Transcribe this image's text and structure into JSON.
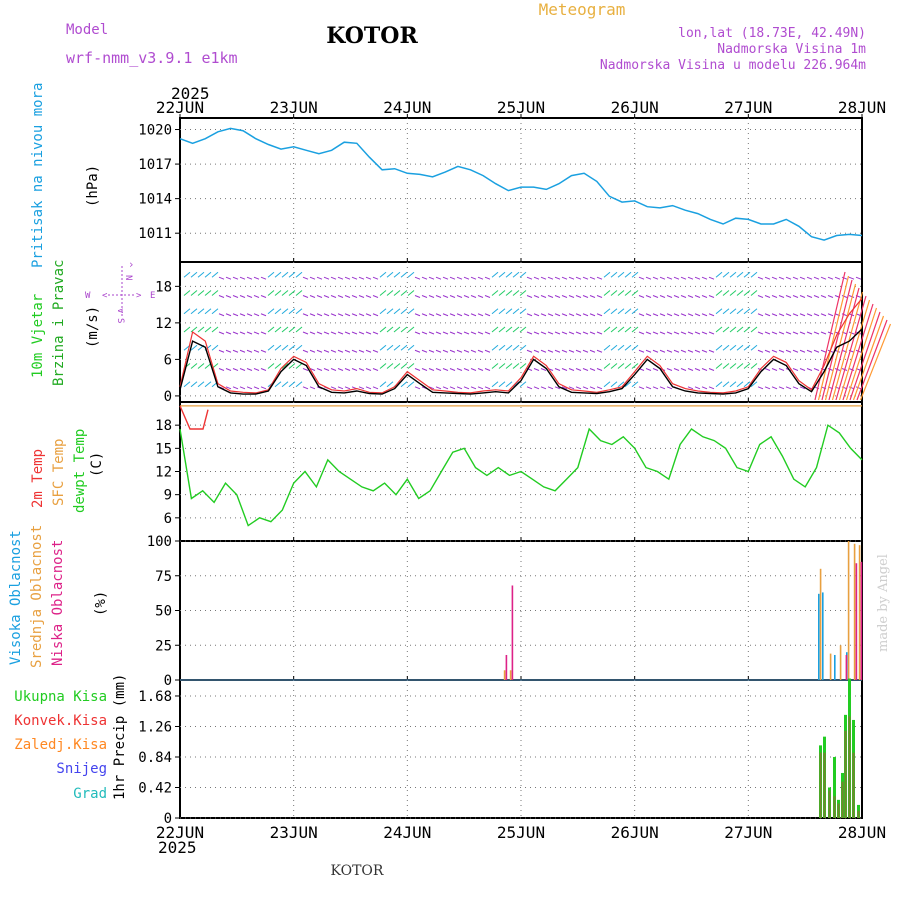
{
  "header": {
    "model_label": "Model",
    "model_name": "wrf-nmm_v3.9.1 e1km",
    "station": "KOTOR",
    "product": "Meteogram",
    "lonlat": "lon,lat (18.73E, 42.49N)",
    "altitude": "Nadmorska Visina 1m",
    "model_altitude": "Nadmorska Visina u modelu 226.964m",
    "year_top": "2025",
    "year_bottom": "2025",
    "footer_station": "KOTOR",
    "signature": "made by Angel"
  },
  "colors": {
    "pressure": "#1aa0e0",
    "wind_label": "#22cc22",
    "wind_speed_label": "#22aa22",
    "direction_label": "#aa44cc",
    "temp2m": "#ee3333",
    "sfc_temp": "#e8a040",
    "dewpoint": "#22cc22",
    "cloud_high": "#1aa0e0",
    "cloud_mid": "#e8a040",
    "cloud_low": "#dd2288",
    "rain_total": "#22cc22",
    "rain_conv": "#ee3333",
    "rain_frozen": "#ff8822",
    "snow": "#4444ee",
    "graupel": "#22bbbb",
    "title_purple": "#b04cd0",
    "title_orange": "#e8b040"
  },
  "chart_data": [
    {
      "type": "line",
      "panel": "pressure",
      "ylabel_main": "Pritisak na nivou mora",
      "ylabel_unit": "(hPa)",
      "x_ticks": [
        "22JUN",
        "23JUN",
        "24JUN",
        "25JUN",
        "26JUN",
        "27JUN",
        "28JUN"
      ],
      "ylim": [
        1008.5,
        1021
      ],
      "y_ticks": [
        "1020",
        "1017",
        "1014",
        "1011"
      ],
      "grid": true,
      "series": [
        {
          "values": [
            1019.2,
            1018.8,
            1019.2,
            1019.8,
            1020.1,
            1019.9,
            1019.2,
            1018.7,
            1018.3,
            1018.5,
            1018.2,
            1017.9,
            1018.2,
            1018.9,
            1018.8,
            1017.6,
            1016.5,
            1016.6,
            1016.2,
            1016.1,
            1015.9,
            1016.3,
            1016.8,
            1016.5,
            1016.0,
            1015.3,
            1014.7,
            1015.0,
            1015.0,
            1014.8,
            1015.3,
            1016.0,
            1016.2,
            1015.5,
            1014.2,
            1013.7,
            1013.8,
            1013.3,
            1013.2,
            1013.4,
            1013.0,
            1012.7,
            1012.2,
            1011.8,
            1012.3,
            1012.2,
            1011.8,
            1011.8,
            1012.2,
            1011.6,
            1010.7,
            1010.4,
            1010.8,
            1010.9,
            1010.8
          ]
        }
      ]
    },
    {
      "type": "line",
      "panel": "wind",
      "ylabel_main": "10m Vjetar",
      "ylabel_sub": "Brzina i Pravac",
      "ylabel_unit": "(m/s)",
      "direction_labels": {
        "n": "N",
        "s": "S",
        "w": "W",
        "e": "E",
        "up": "^",
        "down": "v",
        "left": "<",
        "right": ">"
      },
      "ylim": [
        -1,
        22
      ],
      "y_ticks": [
        "18",
        "12",
        "6",
        "0"
      ],
      "grid": true,
      "series": [
        {
          "values": [
            1.5,
            10.5,
            9.0,
            2.0,
            0.8,
            0.6,
            0.5,
            1.0,
            4.5,
            6.5,
            5.5,
            2.0,
            1.0,
            0.8,
            1.2,
            0.6,
            0.5,
            1.5,
            4.0,
            2.5,
            1.0,
            0.8,
            0.6,
            0.5,
            0.8,
            1.0,
            0.8,
            3.0,
            6.5,
            5.0,
            2.0,
            1.0,
            0.8,
            0.6,
            1.0,
            1.5,
            4.0,
            6.5,
            5.0,
            2.0,
            1.2,
            0.8,
            0.6,
            0.5,
            0.8,
            1.5,
            4.5,
            6.5,
            5.5,
            2.5,
            1.0,
            5.0,
            10.0,
            13.5,
            16.0
          ]
        },
        {
          "values": [
            1.0,
            9.0,
            8.0,
            1.5,
            0.5,
            0.3,
            0.3,
            0.8,
            4.0,
            6.0,
            5.0,
            1.5,
            0.6,
            0.5,
            0.8,
            0.4,
            0.3,
            1.2,
            3.5,
            2.0,
            0.6,
            0.5,
            0.4,
            0.3,
            0.5,
            0.7,
            0.5,
            2.5,
            6.0,
            4.5,
            1.5,
            0.6,
            0.5,
            0.4,
            0.7,
            1.2,
            3.5,
            6.0,
            4.5,
            1.5,
            0.8,
            0.5,
            0.4,
            0.3,
            0.5,
            1.2,
            4.0,
            6.0,
            5.0,
            2.0,
            0.7,
            4.0,
            8.0,
            9.0,
            11.0
          ]
        }
      ]
    },
    {
      "type": "line",
      "panel": "temperature",
      "ylabel_main": "2m Temp",
      "ylabel_sub": "SFC Temp",
      "ylabel_sub2": "dewpt Temp",
      "ylabel_unit": "(C)",
      "ylim": [
        3,
        21
      ],
      "y_ticks": [
        "18",
        "15",
        "12",
        "9",
        "6"
      ],
      "grid": true,
      "series": [
        {
          "values": [
            17.5,
            8.5,
            9.5,
            8.0,
            10.5,
            9.0,
            5.0,
            6.0,
            5.5,
            7.0,
            10.5,
            12.0,
            10.0,
            13.5,
            12.0,
            11.0,
            10.0,
            9.5,
            10.5,
            9.0,
            11.0,
            8.5,
            9.5,
            12.0,
            14.5,
            15.0,
            12.5,
            11.5,
            12.5,
            11.5,
            12.0,
            11.0,
            10.0,
            9.5,
            11.0,
            12.5,
            17.5,
            16.0,
            15.5,
            16.5,
            15.0,
            12.5,
            12.0,
            11.0,
            15.5,
            17.5,
            16.5,
            16.0,
            15.0,
            12.5,
            12.0,
            15.5,
            16.5,
            14.0,
            11.0,
            10.0,
            12.5,
            18.0,
            17.0,
            15.0,
            13.5
          ]
        },
        {
          "values": [
            20.5,
            17.5,
            17.5,
            20.0
          ]
        }
      ]
    },
    {
      "type": "bar",
      "panel": "clouds",
      "ylabel_main": "Visoka Oblacnost",
      "ylabel_sub": "Srednja Oblacnost",
      "ylabel_sub2": "Niska Oblacnost",
      "ylabel_unit": "(%)",
      "ylim": [
        0,
        100
      ],
      "y_ticks": [
        "100",
        "75",
        "50",
        "25",
        "0"
      ],
      "grid": true,
      "series": [
        {
          "values": [
            0,
            0,
            62,
            63,
            0,
            18,
            0,
            0,
            20,
            0,
            0
          ]
        },
        {
          "values": [
            7,
            7,
            80,
            0,
            19,
            0,
            25,
            0,
            100,
            98,
            97
          ]
        },
        {
          "values": [
            18,
            68,
            0,
            0,
            0,
            0,
            0,
            18,
            0,
            84,
            85
          ]
        }
      ]
    },
    {
      "type": "bar",
      "panel": "precipitation",
      "ylabel_unit": "1hr Precip (mm)",
      "legend": [
        "Ukupna Kisa",
        "Konvek.Kisa",
        "Zaledj.Kisa",
        "Snijeg",
        "Grad"
      ],
      "ylim": [
        0,
        1.9
      ],
      "y_ticks": [
        "1.68",
        "1.26",
        "0.84",
        "0.42",
        "0"
      ],
      "grid": true,
      "series": [
        {
          "values": [
            1.0,
            1.12,
            0.42,
            0.84,
            0.25,
            0.62,
            1.42,
            1.92,
            1.35,
            0.18
          ]
        },
        {
          "values": [
            0.9,
            0.9,
            0.38,
            0.3,
            0.2,
            0.5,
            1.2,
            1.4,
            0.9,
            0.1
          ]
        }
      ]
    }
  ]
}
